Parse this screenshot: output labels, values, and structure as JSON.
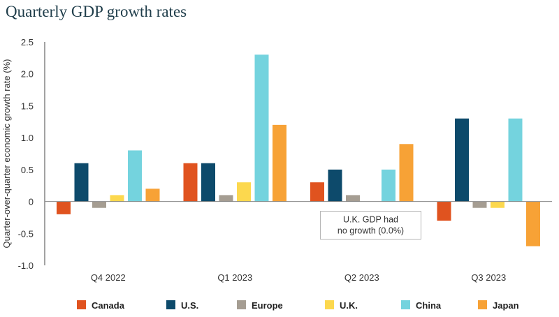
{
  "chart_data": {
    "type": "bar",
    "title": "Quarterly GDP growth rates",
    "ylabel": "Quarter-over-quarter economic growth rate (%)",
    "xlabel": "",
    "ylim": [
      -1.0,
      2.5
    ],
    "yticks": [
      2.5,
      2.0,
      1.5,
      1.0,
      0.5,
      0,
      -0.5,
      -1.0
    ],
    "ytick_labels": [
      "2.5",
      "2.0",
      "1.5",
      "1.0",
      "0.5",
      "0",
      "-0.5",
      "-1.0"
    ],
    "categories": [
      "Q4 2022",
      "Q1 2023",
      "Q2 2023",
      "Q3 2023"
    ],
    "series": [
      {
        "name": "Canada",
        "color": "#e0531f",
        "values": [
          -0.2,
          0.6,
          0.3,
          -0.3
        ]
      },
      {
        "name": "U.S.",
        "color": "#0d4a6b",
        "values": [
          0.6,
          0.6,
          0.5,
          1.3
        ]
      },
      {
        "name": "Europe",
        "color": "#a59d92",
        "values": [
          -0.1,
          0.1,
          0.1,
          -0.1
        ]
      },
      {
        "name": "U.K.",
        "color": "#fcd84e",
        "values": [
          0.1,
          0.3,
          0.0,
          -0.1
        ]
      },
      {
        "name": "China",
        "color": "#74d3de",
        "values": [
          0.8,
          2.3,
          0.5,
          1.3
        ]
      },
      {
        "name": "Japan",
        "color": "#f7a236",
        "values": [
          0.2,
          1.2,
          0.9,
          -0.7
        ]
      }
    ],
    "annotation": {
      "lines": [
        "U.K. GDP had",
        "no growth (0.0%)"
      ],
      "category": "Q2 2023",
      "series": "U.K."
    },
    "legend": "bottom",
    "grid": false
  }
}
